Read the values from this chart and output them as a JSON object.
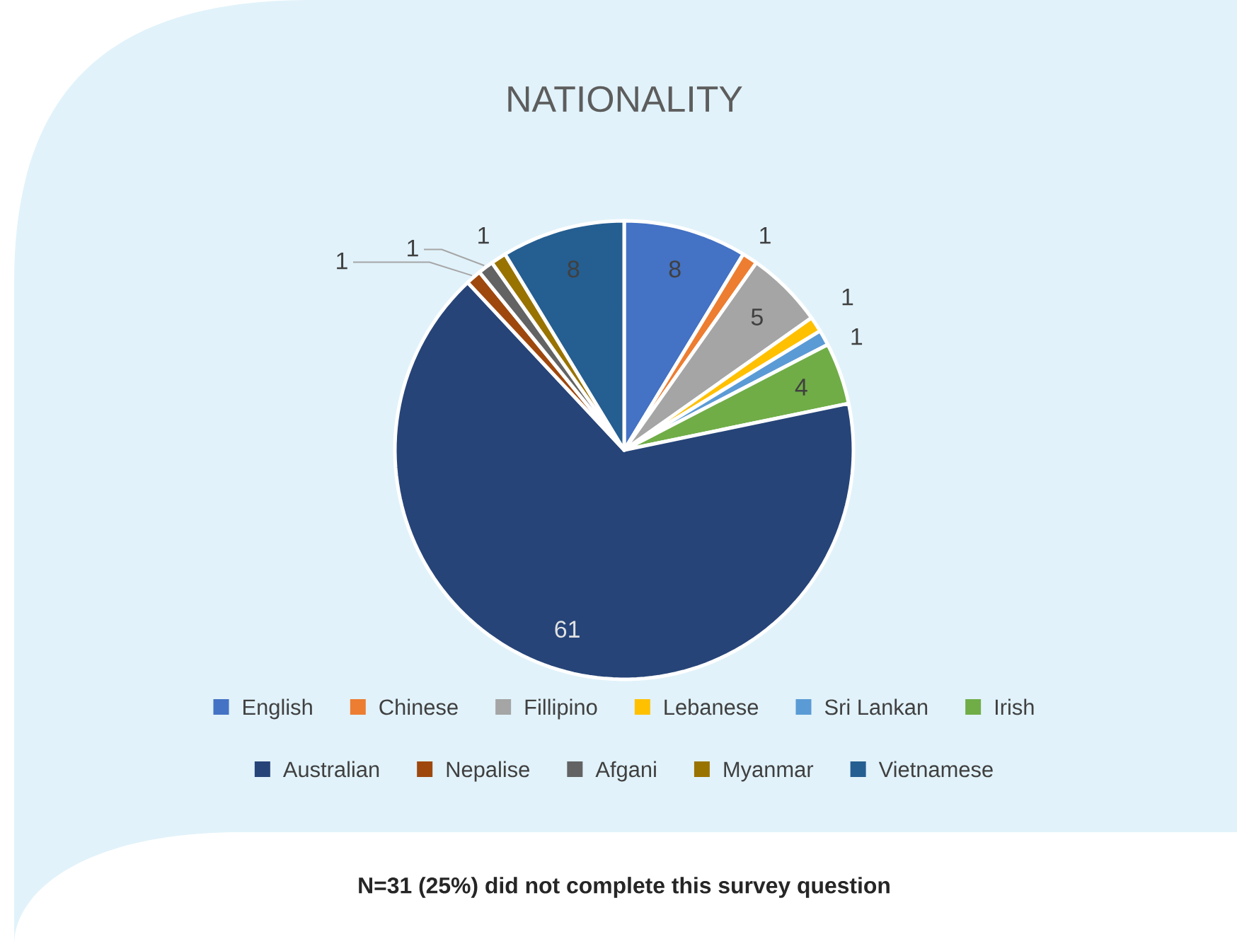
{
  "chart_data": {
    "type": "pie",
    "title": "NATIONALITY",
    "categories": [
      "English",
      "Chinese",
      "Fillipino",
      "Lebanese",
      "Sri Lankan",
      "Irish",
      "Australian",
      "Nepalise",
      "Afgani",
      "Myanmar",
      "Vietnamese"
    ],
    "values": [
      8,
      1,
      5,
      1,
      1,
      4,
      61,
      1,
      1,
      1,
      8
    ],
    "colors": [
      "#4472c4",
      "#ed7d31",
      "#a5a5a5",
      "#ffc000",
      "#5b9bd5",
      "#70ad47",
      "#264478",
      "#9e480e",
      "#636363",
      "#997300",
      "#255e91"
    ],
    "data_labels": true,
    "legend": "bottom",
    "annotations": [
      "N=31 (25%) did not complete this survey question"
    ]
  }
}
